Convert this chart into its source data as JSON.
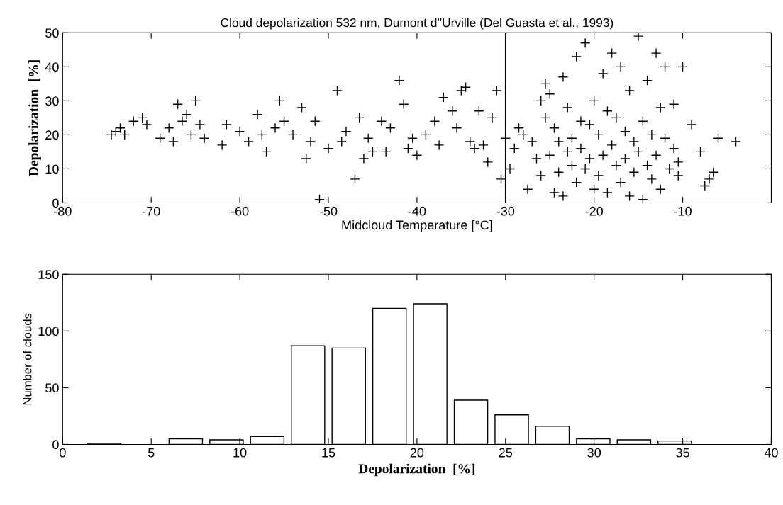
{
  "chart_data": [
    {
      "type": "scatter",
      "title": "Cloud depolarization 532 nm, Dumont d''Urville (Del Guasta et al., 1993)",
      "xlabel": "Midcloud Temperature [°C]",
      "ylabel": "Depolarization  [%]",
      "marker": "cross",
      "grid": false,
      "xlim": [
        -80,
        0
      ],
      "xticks": [
        -80,
        -70,
        -60,
        -50,
        -40,
        -30,
        -20,
        -10
      ],
      "ylim": [
        0,
        50
      ],
      "yticks": [
        0,
        10,
        20,
        30,
        40,
        50
      ],
      "ref_lines": [
        {
          "axis": "x",
          "value": -30,
          "color": "#000000"
        }
      ],
      "series": [
        {
          "color": "#000000",
          "x": [
            -74.5,
            -74,
            -73.5,
            -73,
            -72,
            -71,
            -70.5,
            -69,
            -68,
            -67.5,
            -67,
            -66.5,
            -66,
            -65.5,
            -65,
            -64.5,
            -64,
            -62,
            -61.5,
            -60,
            -59,
            -58,
            -57.5,
            -57,
            -56,
            -55.5,
            -55,
            -54,
            -53,
            -52.5,
            -52,
            -51.5,
            -51,
            -50,
            -49,
            -48.5,
            -48,
            -47,
            -46.5,
            -46,
            -45.5,
            -45,
            -44,
            -43.5,
            -43,
            -42,
            -41.5,
            -41,
            -40.5,
            -40,
            -39,
            -38,
            -37.5,
            -37,
            -36,
            -35.5,
            -35,
            -34.5,
            -34,
            -33.5,
            -33,
            -32.5,
            -32,
            -31.5,
            -31,
            -30.5,
            -30,
            -29.5,
            -29,
            -28.5,
            -28,
            -27.5,
            -27,
            -26.5,
            -26,
            -26,
            -25.5,
            -25.5,
            -25,
            -25,
            -24.5,
            -24.5,
            -24,
            -24,
            -23.5,
            -23.5,
            -23,
            -23,
            -22.5,
            -22.5,
            -22,
            -22,
            -21.5,
            -21.5,
            -21,
            -21,
            -20.5,
            -20.5,
            -20,
            -20,
            -19.5,
            -19.5,
            -19,
            -19,
            -18.5,
            -18.5,
            -18,
            -18,
            -17.5,
            -17.5,
            -17,
            -17,
            -16.5,
            -16.5,
            -16,
            -16,
            -15.5,
            -15.5,
            -15,
            -15,
            -14.5,
            -14.5,
            -14,
            -14,
            -13.5,
            -13.5,
            -13,
            -13,
            -12.5,
            -12.5,
            -12,
            -12,
            -11.5,
            -11,
            -11,
            -10.5,
            -10.5,
            -10,
            -9,
            -8,
            -7.5,
            -7,
            -6.5,
            -6,
            -4
          ],
          "values": [
            20,
            21,
            22,
            20,
            24,
            25,
            23,
            19,
            22,
            18,
            29,
            24,
            26,
            20,
            30,
            23,
            19,
            17,
            23,
            21,
            18,
            26,
            20,
            15,
            22,
            30,
            24,
            20,
            28,
            13,
            18,
            24,
            1,
            16,
            33,
            18,
            21,
            7,
            25,
            13,
            19,
            15,
            24,
            15,
            22,
            36,
            29,
            16,
            19,
            14,
            20,
            24,
            17,
            31,
            27,
            22,
            33,
            34,
            18,
            16,
            27,
            17,
            12,
            25,
            33,
            7,
            19,
            10,
            16,
            22,
            20,
            4,
            18,
            13,
            30,
            8,
            25,
            35,
            14,
            32,
            3,
            22,
            18,
            9,
            37,
            2,
            28,
            15,
            11,
            19,
            43,
            6,
            16,
            24,
            47,
            10,
            23,
            13,
            30,
            4,
            20,
            8,
            38,
            14,
            27,
            3,
            44,
            17,
            11,
            25,
            40,
            6,
            21,
            13,
            33,
            2,
            18,
            9,
            49,
            15,
            24,
            1,
            36,
            11,
            20,
            7,
            44,
            14,
            28,
            4,
            40,
            19,
            10,
            29,
            16,
            8,
            12,
            40,
            23,
            15,
            5,
            7,
            9,
            19,
            18
          ]
        }
      ]
    },
    {
      "type": "histogram",
      "xlabel": "Depolarization  [%]",
      "ylabel": "Number of clouds",
      "grid": false,
      "xlim": [
        0,
        40
      ],
      "xticks": [
        0,
        5,
        10,
        15,
        20,
        25,
        30,
        35,
        40
      ],
      "ylim": [
        0,
        150
      ],
      "yticks": [
        0,
        50,
        100,
        150
      ],
      "color": "#ffffff",
      "bins": [
        1.2,
        3.5,
        5.8,
        8.1,
        10.4,
        12.7,
        15.0,
        17.3,
        19.6,
        21.9,
        24.2,
        26.5,
        28.8,
        31.1,
        33.4,
        35.7
      ],
      "values": [
        1,
        0,
        5,
        4,
        7,
        87,
        85,
        120,
        124,
        39,
        26,
        16,
        5,
        4,
        3
      ]
    }
  ]
}
